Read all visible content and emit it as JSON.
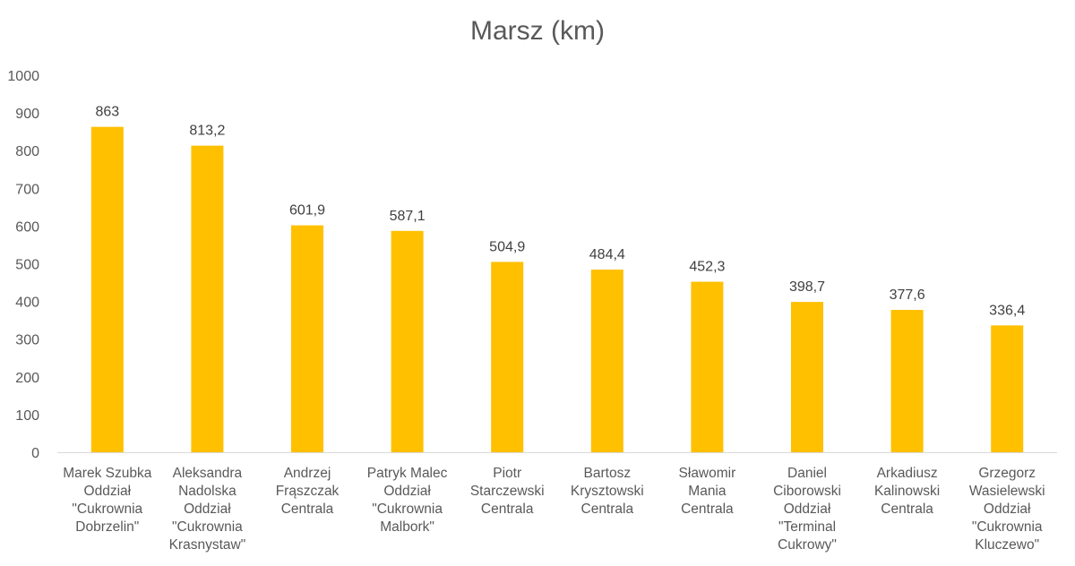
{
  "chart_data": {
    "type": "bar",
    "title": "Marsz (km)",
    "xlabel": "",
    "ylabel": "",
    "ylim": [
      0,
      1000
    ],
    "yticks": [
      0,
      100,
      200,
      300,
      400,
      500,
      600,
      700,
      800,
      900,
      1000
    ],
    "grid": false,
    "legend": "none",
    "bar_color": "#FFC000",
    "categories": [
      [
        "Marek Szubka",
        "Oddział",
        "\"Cukrownia",
        "Dobrzelin\""
      ],
      [
        "Aleksandra",
        "Nadolska",
        "Oddział",
        "\"Cukrownia",
        "Krasnystaw\""
      ],
      [
        "Andrzej",
        "Frąszczak",
        "Centrala"
      ],
      [
        "Patryk Malec",
        "Oddział",
        "\"Cukrownia",
        "Malbork\""
      ],
      [
        "Piotr",
        "Starczewski",
        "Centrala"
      ],
      [
        "Bartosz",
        "Krysztowski",
        "Centrala"
      ],
      [
        "Sławomir",
        "Mania",
        "Centrala"
      ],
      [
        "Daniel",
        "Ciborowski",
        "Oddział",
        "\"Terminal",
        "Cukrowy\""
      ],
      [
        "Arkadiusz",
        "Kalinowski",
        "Centrala"
      ],
      [
        "Grzegorz",
        "Wasielewski",
        "Oddział",
        "\"Cukrownia",
        "Kluczewo\""
      ]
    ],
    "values": [
      863,
      813.2,
      601.9,
      587.1,
      504.9,
      484.4,
      452.3,
      398.7,
      377.6,
      336.4
    ],
    "data_labels": [
      "863",
      "813,2",
      "601,9",
      "587,1",
      "504,9",
      "484,4",
      "452,3",
      "398,7",
      "377,6",
      "336,4"
    ]
  }
}
